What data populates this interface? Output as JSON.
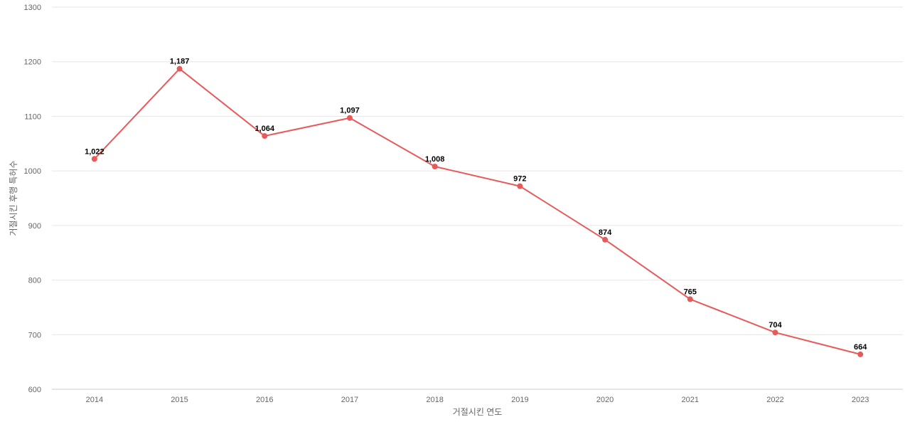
{
  "chart_data": {
    "type": "line",
    "title": "",
    "xlabel": "거절시킨 연도",
    "ylabel": "거절시킨 후행 특허수",
    "categories": [
      "2014",
      "2015",
      "2016",
      "2017",
      "2018",
      "2019",
      "2020",
      "2021",
      "2022",
      "2023"
    ],
    "series": [
      {
        "values": [
          1022,
          1187,
          1064,
          1097,
          1008,
          972,
          874,
          765,
          704,
          664
        ],
        "data_labels": [
          "1,022",
          "1,187",
          "1,064",
          "1,097",
          "1,008",
          "972",
          "874",
          "765",
          "704",
          "664"
        ],
        "color": "#e85a5a"
      }
    ],
    "ylim": [
      600,
      1300
    ],
    "yticks": [
      600,
      700,
      800,
      900,
      1000,
      1100,
      1200,
      1300
    ],
    "grid": true,
    "legend": "none"
  }
}
